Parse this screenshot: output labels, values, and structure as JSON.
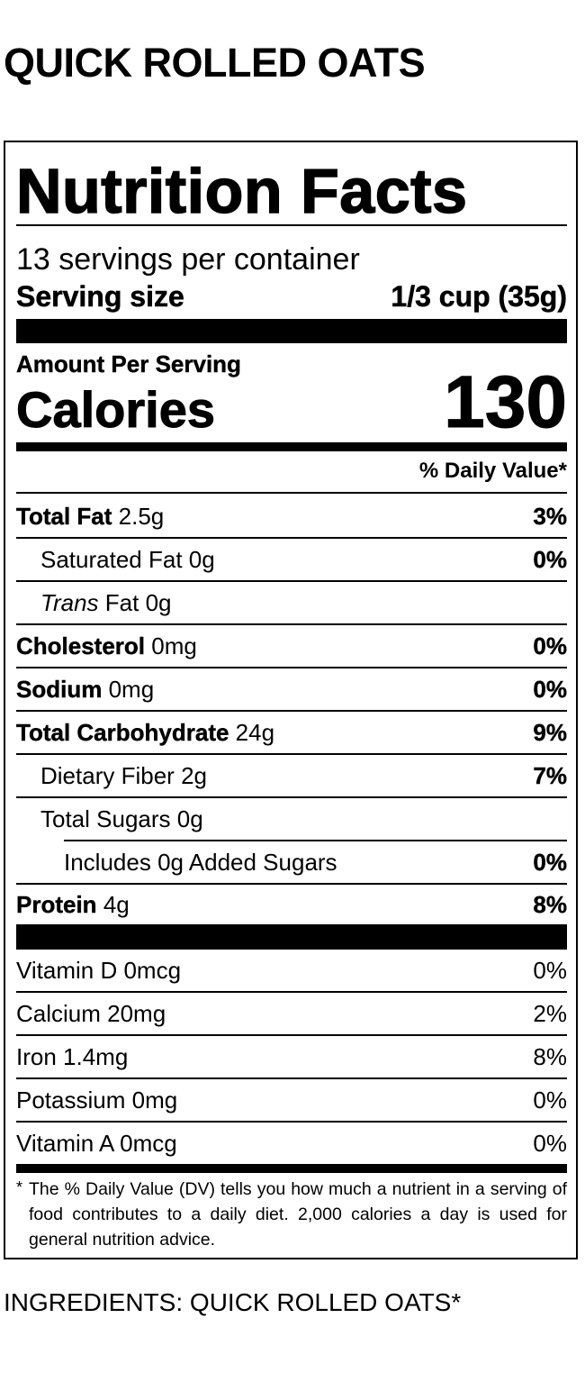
{
  "product_title": "QUICK ROLLED OATS",
  "label": {
    "title": "Nutrition Facts",
    "servings_per_container": "13 servings per container",
    "serving_size_label": "Serving size",
    "serving_size_value": "1/3 cup (35g)",
    "amount_per_serving": "Amount Per Serving",
    "calories_label": "Calories",
    "calories_value": "130",
    "dv_header": "% Daily Value*",
    "nutrients": [
      {
        "name": "Total Fat",
        "amount": "2.5g",
        "dv": "3%"
      },
      {
        "name": "Saturated Fat",
        "amount": "0g",
        "dv": "0%"
      },
      {
        "name_italic": "Trans",
        "name": "Fat",
        "amount": "0g",
        "dv": ""
      },
      {
        "name": "Cholesterol",
        "amount": "0mg",
        "dv": "0%"
      },
      {
        "name": "Sodium",
        "amount": "0mg",
        "dv": "0%"
      },
      {
        "name": "Total Carbohydrate",
        "amount": "24g",
        "dv": "9%"
      },
      {
        "name": "Dietary Fiber",
        "amount": "2g",
        "dv": "7%"
      },
      {
        "name": "Total Sugars",
        "amount": "0g",
        "dv": ""
      },
      {
        "name": "Includes 0g Added Sugars",
        "dv": "0%"
      },
      {
        "name": "Protein",
        "amount": "4g",
        "dv": "8%"
      }
    ],
    "vitamins": [
      {
        "name": "Vitamin D 0mcg",
        "dv": "0%"
      },
      {
        "name": "Calcium 20mg",
        "dv": "2%"
      },
      {
        "name": "Iron 1.4mg",
        "dv": "8%"
      },
      {
        "name": "Potassium 0mg",
        "dv": "0%"
      },
      {
        "name": "Vitamin A 0mcg",
        "dv": "0%"
      }
    ],
    "footnote_star": "*",
    "footnote": "The % Daily Value (DV) tells you how much a nutrient in a serving of food contributes to a daily diet. 2,000 calories a day is used for general nutrition advice."
  },
  "ingredients": "INGREDIENTS: QUICK ROLLED OATS*"
}
